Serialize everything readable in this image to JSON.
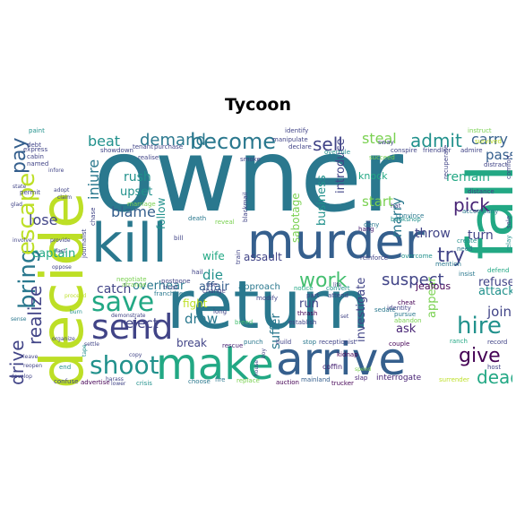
{
  "title": "Tycoon",
  "colors": {
    "background": "#ffffff",
    "palette": [
      "#440154",
      "#482475",
      "#414487",
      "#355f8d",
      "#2a788e",
      "#21918c",
      "#22a884",
      "#44bf70",
      "#7ad151",
      "#bddf26",
      "#fde725"
    ]
  },
  "words": [
    {
      "text": "owner",
      "color": "#2a788e"
    },
    {
      "text": "decide",
      "color": "#bddf26"
    },
    {
      "text": "kill",
      "color": "#2a788e"
    },
    {
      "text": "murder",
      "color": "#355f8d"
    },
    {
      "text": "return",
      "color": "#2a788e"
    },
    {
      "text": "fall",
      "color": "#22a884"
    },
    {
      "text": "make",
      "color": "#22a884"
    },
    {
      "text": "arrive",
      "color": "#355f8d"
    },
    {
      "text": "send",
      "color": "#414487"
    },
    {
      "text": "save",
      "color": "#22a884"
    },
    {
      "text": "shoot",
      "color": "#21918c"
    },
    {
      "text": "become",
      "color": "#2a788e"
    },
    {
      "text": "bring",
      "color": "#2a788e"
    },
    {
      "text": "escape",
      "color": "#bddf26"
    },
    {
      "text": "pay",
      "color": "#355f8d"
    },
    {
      "text": "drive",
      "color": "#414487"
    },
    {
      "text": "realize",
      "color": "#414487"
    },
    {
      "text": "work",
      "color": "#44bf70"
    },
    {
      "text": "hire",
      "color": "#21918c"
    },
    {
      "text": "give",
      "color": "#440154"
    },
    {
      "text": "dead",
      "color": "#22a884"
    },
    {
      "text": "admit",
      "color": "#21918c"
    },
    {
      "text": "sell",
      "color": "#414487"
    },
    {
      "text": "pick",
      "color": "#482475"
    },
    {
      "text": "try",
      "color": "#414487"
    },
    {
      "text": "suspect",
      "color": "#414487"
    },
    {
      "text": "demand",
      "color": "#2a788e"
    },
    {
      "text": "beat",
      "color": "#21918c"
    },
    {
      "text": "carry",
      "color": "#355f8d"
    },
    {
      "text": "pass",
      "color": "#355f8d"
    },
    {
      "text": "steal",
      "color": "#7ad151"
    },
    {
      "text": "lose",
      "color": "#414487"
    },
    {
      "text": "blame",
      "color": "#355f8d"
    },
    {
      "text": "injure",
      "color": "#2a788e"
    },
    {
      "text": "marry",
      "color": "#2a788e"
    },
    {
      "text": "start",
      "color": "#7ad151"
    },
    {
      "text": "turn",
      "color": "#414487"
    },
    {
      "text": "remain",
      "color": "#22a884"
    },
    {
      "text": "catch",
      "color": "#414487"
    },
    {
      "text": "draw",
      "color": "#2a788e"
    },
    {
      "text": "reject",
      "color": "#414487"
    },
    {
      "text": "die",
      "color": "#21918c"
    },
    {
      "text": "join",
      "color": "#414487"
    },
    {
      "text": "refuse",
      "color": "#414487"
    },
    {
      "text": "attack",
      "color": "#21918c"
    },
    {
      "text": "captain",
      "color": "#22a884"
    },
    {
      "text": "rush",
      "color": "#21918c"
    },
    {
      "text": "upset",
      "color": "#21918c"
    },
    {
      "text": "wife",
      "color": "#22a884"
    },
    {
      "text": "follow",
      "color": "#21918c"
    },
    {
      "text": "throw",
      "color": "#414487"
    },
    {
      "text": "business",
      "color": "#21918c"
    },
    {
      "text": "introduce",
      "color": "#414487"
    },
    {
      "text": "investigate",
      "color": "#414487"
    },
    {
      "text": "appear",
      "color": "#7ad151"
    },
    {
      "text": "suffer",
      "color": "#2a788e"
    },
    {
      "text": "overhear",
      "color": "#2a788e"
    },
    {
      "text": "affair",
      "color": "#355f8d"
    },
    {
      "text": "fight",
      "color": "#bddf26"
    },
    {
      "text": "break",
      "color": "#414487"
    },
    {
      "text": "ask",
      "color": "#482475"
    },
    {
      "text": "run",
      "color": "#414487"
    },
    {
      "text": "sabotage",
      "color": "#7ad151"
    },
    {
      "text": "assault",
      "color": "#414487"
    },
    {
      "text": "knock",
      "color": "#22a884"
    },
    {
      "text": "jealous",
      "color": "#440154"
    },
    {
      "text": "approach",
      "color": "#2a788e"
    },
    {
      "text": "end",
      "color": "#21918c"
    },
    {
      "text": "trucker",
      "color": "#440154"
    },
    {
      "text": "interrogate",
      "color": "#482475"
    },
    {
      "text": "coffin",
      "color": "#482475"
    },
    {
      "text": "kidnap",
      "color": "#440154"
    },
    {
      "text": "slap",
      "color": "#482475"
    },
    {
      "text": "choose",
      "color": "#2a788e"
    },
    {
      "text": "fire",
      "color": "#2a788e"
    },
    {
      "text": "auction",
      "color": "#440154"
    },
    {
      "text": "mainland",
      "color": "#355f8d"
    },
    {
      "text": "crisis",
      "color": "#21918c"
    },
    {
      "text": "lower",
      "color": "#414487"
    },
    {
      "text": "replace",
      "color": "#7ad151"
    },
    {
      "text": "confuse",
      "color": "#414487"
    },
    {
      "text": "advertise",
      "color": "#440154"
    },
    {
      "text": "surrender",
      "color": "#bddf26"
    },
    {
      "text": "host",
      "color": "#414487"
    },
    {
      "text": "record",
      "color": "#414487"
    },
    {
      "text": "ranch",
      "color": "#22a884"
    },
    {
      "text": "couple",
      "color": "#440154"
    },
    {
      "text": "stop",
      "color": "#2a788e"
    },
    {
      "text": "receptionist",
      "color": "#414487"
    },
    {
      "text": "build",
      "color": "#414487"
    },
    {
      "text": "punch",
      "color": "#2a788e"
    },
    {
      "text": "rescue",
      "color": "#482475"
    },
    {
      "text": "breed",
      "color": "#44bf70"
    },
    {
      "text": "establish",
      "color": "#414487"
    },
    {
      "text": "thrash",
      "color": "#440154"
    },
    {
      "text": "attend",
      "color": "#414487"
    },
    {
      "text": "part",
      "color": "#414487"
    },
    {
      "text": "notice",
      "color": "#22a884"
    },
    {
      "text": "convert",
      "color": "#21918c"
    },
    {
      "text": "sedate",
      "color": "#2a788e"
    },
    {
      "text": "identity",
      "color": "#414487"
    },
    {
      "text": "pursue",
      "color": "#2a788e"
    },
    {
      "text": "abandon",
      "color": "#7ad151"
    },
    {
      "text": "cheat",
      "color": "#440154"
    },
    {
      "text": "defend",
      "color": "#22a884"
    },
    {
      "text": "insist",
      "color": "#2a788e"
    },
    {
      "text": "mention",
      "color": "#2a788e"
    },
    {
      "text": "overcome",
      "color": "#21918c"
    },
    {
      "text": "reinforce",
      "color": "#414487"
    },
    {
      "text": "hang",
      "color": "#482475"
    },
    {
      "text": "deny",
      "color": "#2a788e"
    },
    {
      "text": "distance",
      "color": "#414487"
    },
    {
      "text": "accompany",
      "color": "#2a788e"
    },
    {
      "text": "recuperate",
      "color": "#414487"
    },
    {
      "text": "convince",
      "color": "#2a788e"
    },
    {
      "text": "bookshop",
      "color": "#21918c"
    },
    {
      "text": "hat",
      "color": "#414487"
    },
    {
      "text": "create",
      "color": "#21918c"
    },
    {
      "text": "need",
      "color": "#2a788e"
    },
    {
      "text": "sale",
      "color": "#414487"
    },
    {
      "text": "relay",
      "color": "#21918c"
    },
    {
      "text": "comfort",
      "color": "#414487"
    },
    {
      "text": "distract",
      "color": "#414487"
    },
    {
      "text": "survived",
      "color": "#bddf26"
    },
    {
      "text": "instruct",
      "color": "#7ad151"
    },
    {
      "text": "admire",
      "color": "#414487"
    },
    {
      "text": "friendlier",
      "color": "#414487"
    },
    {
      "text": "conspire",
      "color": "#414487"
    },
    {
      "text": "sway",
      "color": "#414487"
    },
    {
      "text": "succeed",
      "color": "#7ad151"
    },
    {
      "text": "identify",
      "color": "#414487"
    },
    {
      "text": "manipulate",
      "color": "#414487"
    },
    {
      "text": "declare",
      "color": "#414487"
    },
    {
      "text": "overrule",
      "color": "#21918c"
    },
    {
      "text": "smoke",
      "color": "#414487"
    },
    {
      "text": "blackmail",
      "color": "#414487"
    },
    {
      "text": "reveal",
      "color": "#7ad151"
    },
    {
      "text": "death",
      "color": "#2a788e"
    },
    {
      "text": "chase",
      "color": "#414487"
    },
    {
      "text": "journalist",
      "color": "#414487"
    },
    {
      "text": "negotiate",
      "color": "#7ad151"
    },
    {
      "text": "arrange",
      "color": "#7ad151"
    },
    {
      "text": "postpone",
      "color": "#414487"
    },
    {
      "text": "trust",
      "color": "#414487"
    },
    {
      "text": "franchise",
      "color": "#2a788e"
    },
    {
      "text": "marriage",
      "color": "#7ad151"
    },
    {
      "text": "showdown",
      "color": "#414487"
    },
    {
      "text": "realise",
      "color": "#414487"
    },
    {
      "text": "tenant",
      "color": "#414487"
    },
    {
      "text": "purchase",
      "color": "#414487"
    },
    {
      "text": "use",
      "color": "#414487"
    },
    {
      "text": "change",
      "color": "#414487"
    },
    {
      "text": "bill",
      "color": "#414487"
    },
    {
      "text": "hail",
      "color": "#414487"
    },
    {
      "text": "long",
      "color": "#414487"
    },
    {
      "text": "train",
      "color": "#414487"
    },
    {
      "text": "modify",
      "color": "#414487"
    },
    {
      "text": "paint",
      "color": "#21918c"
    },
    {
      "text": "debt",
      "color": "#414487"
    },
    {
      "text": "express",
      "color": "#414487"
    },
    {
      "text": "cabin",
      "color": "#414487"
    },
    {
      "text": "named",
      "color": "#414487"
    },
    {
      "text": "state",
      "color": "#414487"
    },
    {
      "text": "permit",
      "color": "#414487"
    },
    {
      "text": "glad",
      "color": "#414487"
    },
    {
      "text": "infore",
      "color": "#414487"
    },
    {
      "text": "adopt",
      "color": "#414487"
    },
    {
      "text": "claim",
      "color": "#414487"
    },
    {
      "text": "involve",
      "color": "#414487"
    },
    {
      "text": "provide",
      "color": "#414487"
    },
    {
      "text": "fact",
      "color": "#414487"
    },
    {
      "text": "oppose",
      "color": "#414487"
    },
    {
      "text": "proceed",
      "color": "#bddf26"
    },
    {
      "text": "sense",
      "color": "#2a788e"
    },
    {
      "text": "demonstrate",
      "color": "#414487"
    },
    {
      "text": "organize",
      "color": "#414487"
    },
    {
      "text": "settle",
      "color": "#414487"
    },
    {
      "text": "leave",
      "color": "#414487"
    },
    {
      "text": "reopen",
      "color": "#414487"
    },
    {
      "text": "harass",
      "color": "#414487"
    },
    {
      "text": "copy",
      "color": "#414487"
    },
    {
      "text": "develop",
      "color": "#414487"
    },
    {
      "text": "tape",
      "color": "#21918c"
    },
    {
      "text": "burn",
      "color": "#21918c"
    },
    {
      "text": "spend",
      "color": "#7ad151"
    },
    {
      "text": "set",
      "color": "#414487"
    },
    {
      "text": "life",
      "color": "#414487"
    },
    {
      "text": "house",
      "color": "#414487"
    },
    {
      "text": "boy",
      "color": "#414487"
    }
  ]
}
